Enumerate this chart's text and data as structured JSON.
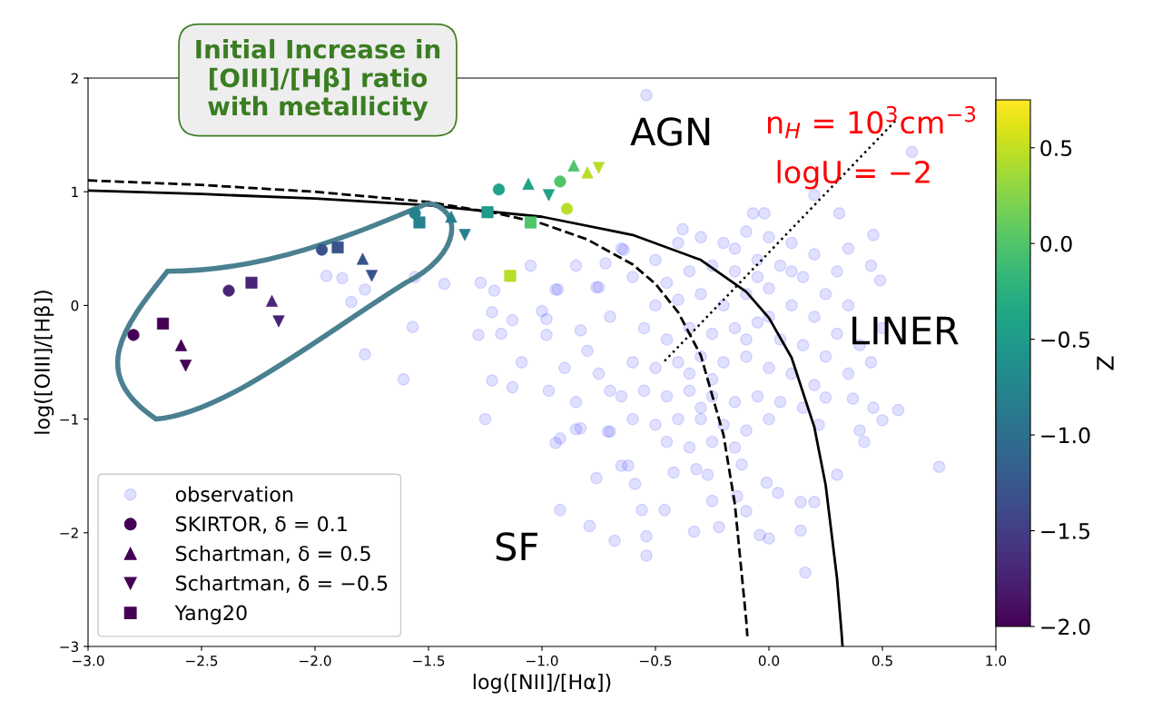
{
  "chart_data": {
    "type": "scatter",
    "xlabel": "log([NII]/[Hα])",
    "ylabel": "log([OIII]/[Hβ])",
    "clabel": "Z",
    "xlim": [
      -3.0,
      1.0
    ],
    "xticks": [
      {
        "value": -3.0,
        "label": "−3.0"
      },
      {
        "value": -2.5,
        "label": "−2.5"
      },
      {
        "value": -2.0,
        "label": "−2.0"
      },
      {
        "value": -1.5,
        "label": "−1.5"
      },
      {
        "value": -1.0,
        "label": "−1.0"
      },
      {
        "value": -0.5,
        "label": "−0.5"
      },
      {
        "value": 0.0,
        "label": "0.0"
      },
      {
        "value": 0.5,
        "label": "0.5"
      },
      {
        "value": 1.0,
        "label": "1.0"
      }
    ],
    "ylim": [
      -3,
      2
    ],
    "yticks": [
      {
        "value": -3,
        "label": "−3"
      },
      {
        "value": -2,
        "label": "−2"
      },
      {
        "value": -1,
        "label": "−1"
      },
      0,
      1,
      2
    ],
    "clim": [
      -2.0,
      0.75
    ],
    "cticks": [
      {
        "value": -2.0,
        "label": "−2.0"
      },
      {
        "value": -1.5,
        "label": "−1.5"
      },
      {
        "value": -1.0,
        "label": "−1.0"
      },
      {
        "value": -0.5,
        "label": "−0.5"
      },
      {
        "value": 0.0,
        "label": "0.0"
      },
      {
        "value": 0.5,
        "label": "0.5"
      }
    ],
    "grid": false,
    "legend": "bottom left",
    "annotations": [
      "Initial Increase in\n[OIII]/[Hβ] ratio\nwith metallicity",
      "AGN",
      "LINER",
      "SF",
      "n$_{H}$ = 10$^{3}$cm$^{−3}$",
      "logU = −2"
    ],
    "series": [
      {
        "name": "observation",
        "marker": "circle",
        "color": "#0000ff",
        "x": [
          -0.54,
          0.63,
          0.2,
          0.31,
          0.46,
          0.49,
          -0.07,
          -0.02,
          -0.38,
          -0.65,
          -0.76,
          -0.94,
          -0.98,
          -1.95,
          -1.88,
          -1.78,
          -1.84,
          -1.56,
          -1.43,
          -1.57,
          -1.78,
          -1.27,
          -1.21,
          -1.22,
          -1.28,
          -1.18,
          -1.13,
          -1.09,
          -0.98,
          -0.93,
          -0.83,
          -0.75,
          -0.64,
          -0.72,
          -1.61,
          -1.22,
          -1.13,
          -0.97,
          -1.25,
          -0.94,
          -0.83,
          -0.7,
          -0.62,
          -0.76,
          -0.92,
          -0.79,
          -0.68,
          -0.54,
          -0.54,
          -0.56,
          -0.46,
          -0.33,
          -0.22,
          -0.25,
          -0.14,
          -0.1,
          -0.04,
          0.0,
          0.14,
          0.16,
          0.14,
          0.2,
          0.3,
          0.4,
          0.42,
          0.5,
          0.57,
          0.75,
          0.46,
          0.37,
          0.25,
          0.22,
          -0.01,
          0.04,
          -0.12,
          -0.65,
          -0.59,
          -0.42,
          -0.92,
          -0.85,
          -0.71,
          -0.32,
          -0.27,
          -0.5,
          -0.4,
          -0.3,
          -0.2,
          -0.1,
          0.0,
          0.1,
          0.2,
          0.3,
          -0.45,
          -0.35,
          -0.25,
          -0.15,
          -0.05,
          0.05,
          0.15,
          0.25,
          0.35,
          -0.5,
          -0.4,
          -0.3,
          -0.2,
          -0.1,
          0.0,
          0.1,
          0.2,
          0.3,
          0.4,
          -0.55,
          -0.45,
          -0.35,
          -0.25,
          -0.15,
          -0.05,
          0.05,
          0.15,
          0.25,
          0.35,
          -0.6,
          -0.5,
          -0.4,
          -0.3,
          -0.2,
          -0.1,
          0.0,
          0.1,
          0.2,
          -0.65,
          -0.55,
          -0.45,
          -0.35,
          -0.25,
          -0.15,
          -0.05,
          0.05,
          0.15,
          -0.6,
          -0.5,
          -0.4,
          -0.3,
          -0.2,
          -0.1,
          0.0,
          -0.45,
          -0.35,
          -0.25,
          -0.15,
          -0.3,
          -0.35,
          -0.25,
          -0.1,
          0.0,
          -0.05,
          0.1,
          -0.15,
          -0.8,
          -0.7,
          -0.75,
          -0.7,
          -0.85,
          0.45,
          0.5,
          0.45,
          0.35,
          -0.6,
          -0.85,
          -1.0,
          -1.05,
          -0.9
        ],
        "values": [
          1.85,
          1.35,
          0.97,
          0.81,
          0.62,
          0.22,
          0.81,
          0.81,
          0.67,
          0.5,
          0.16,
          0.14,
          -0.26,
          0.26,
          0.24,
          0.14,
          0.03,
          0.25,
          0.19,
          -0.19,
          -0.43,
          0.2,
          0.13,
          -0.06,
          -0.26,
          -0.25,
          -0.13,
          -0.5,
          -0.12,
          0.14,
          -0.22,
          0.16,
          0.49,
          0.37,
          -0.65,
          -0.66,
          -0.72,
          -0.75,
          -1.0,
          -1.21,
          -1.08,
          -1.11,
          -1.41,
          -1.52,
          -1.8,
          -1.94,
          -2.07,
          -2.2,
          -2.03,
          -1.8,
          -1.8,
          -1.99,
          -1.95,
          -1.72,
          -1.68,
          -1.81,
          -2.02,
          -2.05,
          -1.98,
          -2.35,
          -1.73,
          -1.73,
          -1.49,
          -1.1,
          -1.2,
          -1.01,
          -0.92,
          -1.42,
          -0.9,
          -0.82,
          -0.81,
          -1.05,
          -1.56,
          -1.65,
          -1.4,
          -1.41,
          -1.57,
          -1.47,
          -1.17,
          -1.09,
          -1.11,
          -1.44,
          -1.49,
          0.4,
          0.55,
          0.6,
          0.55,
          0.65,
          0.6,
          0.55,
          0.45,
          0.3,
          0.2,
          0.3,
          0.35,
          0.3,
          0.4,
          0.35,
          0.25,
          0.1,
          0.0,
          0.0,
          0.05,
          0.1,
          0.0,
          0.1,
          0.15,
          0.0,
          -0.1,
          -0.25,
          -0.35,
          -0.2,
          -0.3,
          -0.2,
          -0.25,
          -0.2,
          -0.15,
          -0.3,
          -0.35,
          -0.45,
          -0.6,
          -0.5,
          -0.55,
          -0.5,
          -0.45,
          -0.5,
          -0.45,
          -0.55,
          -0.6,
          -0.7,
          -0.8,
          -0.75,
          -0.8,
          -0.75,
          -0.8,
          -0.85,
          -0.8,
          -0.85,
          -0.9,
          -1.0,
          -1.05,
          -1.0,
          -1.0,
          -1.05,
          -1.1,
          -1.0,
          -1.2,
          -1.25,
          -1.2,
          -1.25,
          -0.9,
          -0.6,
          -0.65,
          -0.3,
          -0.1,
          0.25,
          0.3,
          0.5,
          -0.4,
          -0.1,
          -0.6,
          -0.75,
          -0.85,
          -0.5,
          -0.2,
          0.35,
          0.5,
          0.25,
          0.35,
          -0.05,
          0.35,
          -0.55
        ]
      },
      {
        "name": "SKIRTOR, δ = 0.1",
        "marker": "circle",
        "color": "#440154",
        "colors": [
          "#440154",
          "#482878",
          "#38598c",
          "#25848e",
          "#1e9b8a",
          "#42be71",
          "#b2dd2d"
        ],
        "x": [
          -2.8,
          -2.38,
          -1.97,
          -1.56,
          -1.19,
          -0.92,
          -0.89
        ],
        "values": [
          -0.26,
          0.13,
          0.49,
          0.81,
          1.02,
          1.09,
          0.85
        ],
        "cvalues": [
          -2.0,
          -1.7,
          -1.3,
          -0.8,
          -0.4,
          0.0,
          0.45
        ]
      },
      {
        "name": "Schartman, δ = 0.5",
        "marker": "triangle",
        "color": "#440154",
        "colors": [
          "#440154",
          "#482878",
          "#38598c",
          "#25848e",
          "#1e9b8a",
          "#42be71",
          "#b2dd2d"
        ],
        "x": [
          -2.59,
          -2.19,
          -1.79,
          -1.4,
          -1.06,
          -0.86,
          -0.8
        ],
        "values": [
          -0.35,
          0.04,
          0.41,
          0.78,
          1.07,
          1.23,
          1.17
        ],
        "cvalues": [
          -2.0,
          -1.7,
          -1.3,
          -0.8,
          -0.4,
          0.0,
          0.45
        ]
      },
      {
        "name": "Schartman, δ = −0.5",
        "marker": "triangle_down",
        "color": "#440154",
        "colors": [
          "#440154",
          "#482878",
          "#38598c",
          "#25848e",
          "#1e9b8a",
          "#b2dd2d"
        ],
        "x": [
          -2.57,
          -2.16,
          -1.75,
          -1.34,
          -0.97,
          -0.75
        ],
        "values": [
          -0.53,
          -0.14,
          0.26,
          0.62,
          0.97,
          1.21
        ],
        "cvalues": [
          -2.0,
          -1.7,
          -1.3,
          -0.8,
          -0.4,
          0.45
        ]
      },
      {
        "name": "Yang20",
        "marker": "square",
        "color": "#440154",
        "colors": [
          "#440154",
          "#482878",
          "#38598c",
          "#25848e",
          "#21908d",
          "#42be71",
          "#b2dd2d"
        ],
        "x": [
          -2.67,
          -2.28,
          -1.9,
          -1.54,
          -1.24,
          -1.05,
          -1.14
        ],
        "values": [
          -0.16,
          0.2,
          0.51,
          0.73,
          0.82,
          0.73,
          0.26
        ],
        "cvalues": [
          -2.0,
          -1.7,
          -1.3,
          -0.8,
          -0.5,
          0.0,
          0.45
        ]
      },
      {
        "type": "line",
        "line_style": "dashed",
        "color": "#000000",
        "x": [
          -3,
          -2.5,
          -2,
          -1.5,
          -1.2,
          -1,
          -0.8,
          -0.6,
          -0.5,
          -0.4,
          -0.3,
          -0.2,
          -0.15,
          -0.1,
          -0.095
        ],
        "values": [
          1.1,
          1.06,
          1.0,
          0.91,
          0.81,
          0.72,
          0.58,
          0.36,
          0.19,
          -0.06,
          -0.44,
          -1.14,
          -1.75,
          -2.77,
          -2.91
        ]
      },
      {
        "type": "line",
        "line_style": "solid",
        "color": "#000000",
        "x": [
          -3,
          -2.5,
          -2,
          -1.5,
          -1,
          -0.6,
          -0.3,
          -0.1,
          0,
          0.1,
          0.2,
          0.25,
          0.3,
          0.32,
          0.324
        ],
        "values": [
          1.01,
          0.98,
          0.94,
          0.88,
          0.78,
          0.62,
          0.4,
          0.12,
          -0.11,
          -0.46,
          -1.07,
          -1.58,
          -2.4,
          -2.88,
          -2.99
        ]
      },
      {
        "type": "line",
        "line_style": "dotted",
        "color": "#000000",
        "x": [
          -0.46,
          0.56
        ],
        "values": [
          -0.49,
          1.63
        ]
      }
    ]
  }
}
